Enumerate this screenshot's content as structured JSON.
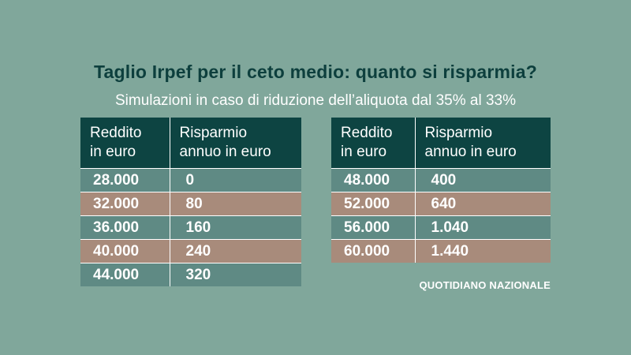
{
  "title": "Taglio Irpef per il ceto medio: quanto si risparmia?",
  "subtitle": "Simulazioni in caso di riduzione dell’aliquota dal 35% al 33%",
  "columns": {
    "income_line1": "Reddito",
    "income_line2": "in euro",
    "saving_line1": "Risparmio",
    "saving_line2": "annuo in euro"
  },
  "table_left": {
    "rows": [
      {
        "income": "28.000",
        "saving": "0"
      },
      {
        "income": "32.000",
        "saving": "80"
      },
      {
        "income": "36.000",
        "saving": "160"
      },
      {
        "income": "40.000",
        "saving": "240"
      },
      {
        "income": "44.000",
        "saving": "320"
      }
    ]
  },
  "table_right": {
    "rows": [
      {
        "income": "48.000",
        "saving": "400"
      },
      {
        "income": "52.000",
        "saving": "640"
      },
      {
        "income": "56.000",
        "saving": "1.040"
      },
      {
        "income": "60.000",
        "saving": "1.440"
      }
    ]
  },
  "source": "QUOTIDIANO NAZIONALE",
  "colors": {
    "background": "#80a79b",
    "header": "#0d4442",
    "row_teal": "#5f8a84",
    "row_tan": "#a88b7b",
    "title": "#0d3f3d"
  }
}
